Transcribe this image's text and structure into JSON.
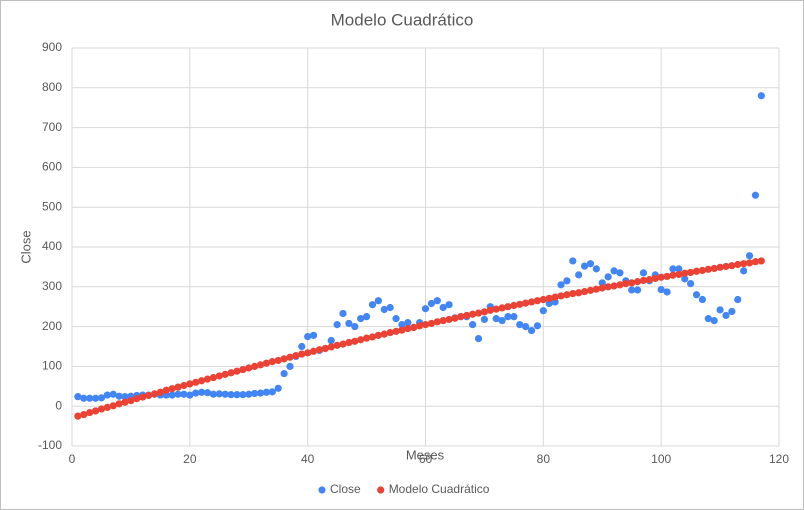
{
  "chart_data": {
    "type": "scatter",
    "title": "Modelo Cuadrático",
    "x_label": "Meses",
    "y_label": "Close",
    "x": [
      1,
      2,
      3,
      4,
      5,
      6,
      7,
      8,
      9,
      10,
      11,
      12,
      13,
      14,
      15,
      16,
      17,
      18,
      19,
      20,
      21,
      22,
      23,
      24,
      25,
      26,
      27,
      28,
      29,
      30,
      31,
      32,
      33,
      34,
      35,
      36,
      37,
      38,
      39,
      40,
      41,
      42,
      43,
      44,
      45,
      46,
      47,
      48,
      49,
      50,
      51,
      52,
      53,
      54,
      55,
      56,
      57,
      58,
      59,
      60,
      61,
      62,
      63,
      64,
      65,
      66,
      67,
      68,
      69,
      70,
      71,
      72,
      73,
      74,
      75,
      76,
      77,
      78,
      79,
      80,
      81,
      82,
      83,
      84,
      85,
      86,
      87,
      88,
      89,
      90,
      91,
      92,
      93,
      94,
      95,
      96,
      97,
      98,
      99,
      100,
      101,
      102,
      103,
      104,
      105,
      106,
      107,
      108,
      109,
      110,
      111,
      112,
      113,
      114,
      115,
      116,
      117
    ],
    "series": [
      {
        "name": "Close",
        "color": "#4285f4",
        "values": [
          24,
          20,
          20,
          20,
          21,
          28,
          30,
          25,
          24,
          25,
          27,
          28,
          28,
          30,
          28,
          28,
          28,
          30,
          30,
          28,
          33,
          35,
          34,
          30,
          31,
          30,
          29,
          29,
          29,
          30,
          32,
          33,
          35,
          36,
          45,
          82,
          100,
          125,
          150,
          175,
          178,
          140,
          145,
          165,
          205,
          233,
          208,
          200,
          220,
          225,
          255,
          265,
          243,
          248,
          220,
          205,
          210,
          198,
          210,
          245,
          258,
          265,
          248,
          255,
          222,
          225,
          225,
          205,
          170,
          218,
          250,
          220,
          215,
          225,
          225,
          205,
          200,
          190,
          202,
          240,
          258,
          262,
          305,
          315,
          365,
          330,
          352,
          358,
          345,
          310,
          325,
          340,
          335,
          315,
          292,
          292,
          335,
          315,
          330,
          293,
          287,
          345,
          345,
          320,
          308,
          280,
          268,
          220,
          215,
          242,
          228,
          238,
          268,
          340,
          378,
          530,
          780
        ]
      },
      {
        "name": "Modelo Cuadrático",
        "color": "#ea4335",
        "values": [
          -25,
          -21,
          -16,
          -12,
          -7,
          -3,
          1,
          6,
          10,
          14,
          19,
          23,
          27,
          31,
          35,
          40,
          44,
          48,
          52,
          56,
          60,
          64,
          68,
          72,
          76,
          80,
          84,
          88,
          92,
          96,
          100,
          104,
          108,
          112,
          115,
          119,
          123,
          127,
          131,
          134,
          138,
          142,
          145,
          149,
          153,
          156,
          160,
          163,
          167,
          171,
          174,
          178,
          181,
          185,
          188,
          191,
          195,
          198,
          202,
          205,
          208,
          212,
          215,
          218,
          221,
          225,
          228,
          231,
          234,
          237,
          241,
          244,
          247,
          250,
          253,
          256,
          259,
          262,
          265,
          268,
          271,
          274,
          277,
          280,
          283,
          285,
          288,
          291,
          294,
          297,
          300,
          302,
          305,
          308,
          310,
          313,
          316,
          318,
          321,
          324,
          326,
          329,
          331,
          334,
          336,
          339,
          341,
          344,
          346,
          349,
          351,
          353,
          356,
          358,
          360,
          363,
          365
        ]
      }
    ],
    "xlim": [
      0,
      120
    ],
    "xticks": [
      0,
      20,
      40,
      60,
      80,
      100,
      120
    ],
    "ylim": [
      -100,
      900
    ],
    "yticks": [
      -100,
      0,
      100,
      200,
      300,
      400,
      500,
      600,
      700,
      800,
      900
    ],
    "grid": true,
    "legend": "bottom"
  }
}
